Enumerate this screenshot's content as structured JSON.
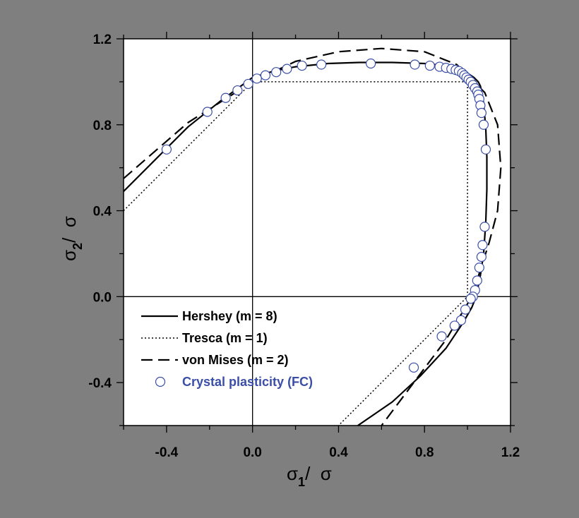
{
  "chart_data": {
    "type": "line",
    "xlabel": {
      "symbol": "σ",
      "subscript": "1",
      "rest": "/  σ"
    },
    "ylabel": {
      "symbol": "σ",
      "subscript": "2",
      "rest": "/  σ"
    },
    "xlim": [
      -0.6,
      1.2
    ],
    "ylim": [
      -0.6,
      1.2
    ],
    "x_ticks": [
      -0.4,
      0.0,
      0.4,
      0.8,
      1.2
    ],
    "y_ticks": [
      -0.4,
      0.0,
      0.4,
      0.8,
      1.2
    ],
    "x_tick_labels": [
      "-0.4",
      "0.0",
      "0.4",
      "0.8",
      "1.2"
    ],
    "y_tick_labels": [
      "-0.4",
      "0.0",
      "0.4",
      "0.8",
      "1.2"
    ],
    "zero_lines": true,
    "legend_position": "bottom-left",
    "series": [
      {
        "name": "Hershey (m = 8)",
        "style": "solid",
        "color": "#000000",
        "x": [
          -0.6,
          -0.3,
          -0.15,
          0.0,
          0.1,
          0.2,
          0.35,
          0.5,
          0.65,
          0.8,
          0.9,
          0.96,
          1.0,
          1.03,
          1.05,
          1.06,
          1.075,
          1.085,
          1.09,
          1.09,
          1.085,
          1.075,
          1.06,
          1.04,
          1.02,
          0.98,
          0.9,
          0.78,
          0.65,
          0.49
        ],
        "y": [
          0.49,
          0.79,
          0.91,
          1.02,
          1.05,
          1.07,
          1.085,
          1.09,
          1.09,
          1.085,
          1.075,
          1.06,
          1.04,
          1.02,
          1.0,
          0.98,
          0.9,
          0.78,
          0.65,
          0.5,
          0.35,
          0.2,
          0.1,
          0.0,
          -0.05,
          -0.12,
          -0.24,
          -0.37,
          -0.49,
          -0.6
        ]
      },
      {
        "name": "Tresca (m = 1)",
        "style": "dotted",
        "color": "#000000",
        "x": [
          -0.6,
          0.0,
          1.0,
          1.0,
          0.4
        ],
        "y": [
          0.4,
          1.0,
          1.0,
          0.0,
          -0.6
        ]
      },
      {
        "name": "von Mises (m = 2)",
        "style": "dashed",
        "color": "#000000",
        "x": [
          -0.6,
          -0.3,
          0.0,
          0.2,
          0.4,
          0.6,
          0.8,
          0.95,
          1.08,
          1.14,
          1.155,
          1.14,
          1.1,
          1.02,
          0.9,
          0.75,
          0.6
        ],
        "y": [
          0.55,
          0.81,
          1.0,
          1.095,
          1.14,
          1.155,
          1.14,
          1.08,
          0.95,
          0.8,
          0.6,
          0.4,
          0.25,
          0.0,
          -0.2,
          -0.4,
          -0.6
        ]
      },
      {
        "name": "Crystal plasticity (FC)",
        "style": "markers",
        "color": "#3a4ea8",
        "x": [
          -0.4,
          -0.21,
          -0.125,
          -0.07,
          -0.02,
          0.02,
          0.06,
          0.11,
          0.16,
          0.23,
          0.32,
          0.55,
          0.755,
          0.825,
          0.87,
          0.9,
          0.925,
          0.945,
          0.96,
          0.975,
          0.985,
          0.995,
          1.005,
          1.015,
          1.025,
          1.035,
          1.045,
          1.05,
          1.055,
          1.06,
          1.065,
          1.075,
          1.085,
          1.08,
          1.07,
          1.065,
          1.055,
          1.045,
          1.035,
          1.025,
          1.015,
          0.99,
          0.97,
          0.94,
          0.88,
          0.75
        ],
        "y": [
          0.685,
          0.86,
          0.925,
          0.96,
          0.99,
          1.015,
          1.03,
          1.045,
          1.06,
          1.075,
          1.08,
          1.085,
          1.08,
          1.075,
          1.07,
          1.065,
          1.06,
          1.055,
          1.05,
          1.04,
          1.03,
          1.02,
          1.01,
          1.0,
          0.985,
          0.97,
          0.955,
          0.94,
          0.92,
          0.89,
          0.855,
          0.8,
          0.685,
          0.325,
          0.24,
          0.185,
          0.135,
          0.075,
          0.03,
          0.0,
          -0.01,
          -0.06,
          -0.11,
          -0.135,
          -0.185,
          -0.33
        ]
      }
    ]
  }
}
